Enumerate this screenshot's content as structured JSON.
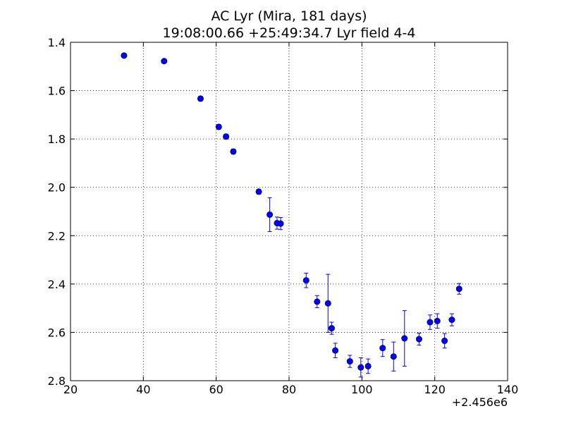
{
  "chart_data": {
    "type": "scatter",
    "title": "AC Lyr (Mira, 181 days)",
    "subtitle": "19:08:00.66 +25:49:34.7 Lyr field 4-4",
    "xlabel": "",
    "ylabel": "",
    "x_offset_label": "+2.456e6",
    "xlim": [
      20,
      140
    ],
    "ylim": [
      1.4,
      2.8
    ],
    "y_inverted": true,
    "grid": true,
    "x_ticks": [
      20,
      40,
      60,
      80,
      100,
      120,
      140
    ],
    "y_ticks": [
      1.4,
      1.6,
      1.8,
      2.0,
      2.2,
      2.4,
      2.6,
      2.8
    ],
    "x_tick_labels": [
      "20",
      "40",
      "60",
      "80",
      "100",
      "120",
      "140"
    ],
    "y_tick_labels": [
      "1.4",
      "1.6",
      "1.8",
      "2.0",
      "2.2",
      "2.4",
      "2.6",
      "2.8"
    ],
    "marker_color": "#0000ff",
    "points": [
      {
        "x": 34.7,
        "y": 1.455,
        "err": 0.005
      },
      {
        "x": 45.7,
        "y": 1.478,
        "err": 0.005
      },
      {
        "x": 55.7,
        "y": 1.633,
        "err": 0.01
      },
      {
        "x": 60.7,
        "y": 1.75,
        "err": 0.01
      },
      {
        "x": 62.7,
        "y": 1.79,
        "err": 0.01
      },
      {
        "x": 64.7,
        "y": 1.852,
        "err": 0.01
      },
      {
        "x": 71.7,
        "y": 2.018,
        "err": 0.01
      },
      {
        "x": 74.7,
        "y": 2.113,
        "err": 0.07
      },
      {
        "x": 76.7,
        "y": 2.148,
        "err": 0.025
      },
      {
        "x": 77.7,
        "y": 2.15,
        "err": 0.025
      },
      {
        "x": 84.7,
        "y": 2.385,
        "err": 0.03
      },
      {
        "x": 87.7,
        "y": 2.473,
        "err": 0.025
      },
      {
        "x": 90.7,
        "y": 2.48,
        "err": 0.12
      },
      {
        "x": 91.7,
        "y": 2.583,
        "err": 0.025
      },
      {
        "x": 92.7,
        "y": 2.675,
        "err": 0.03
      },
      {
        "x": 96.7,
        "y": 2.72,
        "err": 0.025
      },
      {
        "x": 99.7,
        "y": 2.745,
        "err": 0.04
      },
      {
        "x": 101.7,
        "y": 2.74,
        "err": 0.03
      },
      {
        "x": 105.7,
        "y": 2.665,
        "err": 0.035
      },
      {
        "x": 108.7,
        "y": 2.7,
        "err": 0.06
      },
      {
        "x": 111.7,
        "y": 2.625,
        "err": 0.115
      },
      {
        "x": 115.7,
        "y": 2.628,
        "err": 0.025
      },
      {
        "x": 118.7,
        "y": 2.558,
        "err": 0.03
      },
      {
        "x": 120.7,
        "y": 2.553,
        "err": 0.03
      },
      {
        "x": 122.7,
        "y": 2.635,
        "err": 0.03
      },
      {
        "x": 124.7,
        "y": 2.548,
        "err": 0.025
      },
      {
        "x": 126.7,
        "y": 2.42,
        "err": 0.022
      }
    ]
  }
}
